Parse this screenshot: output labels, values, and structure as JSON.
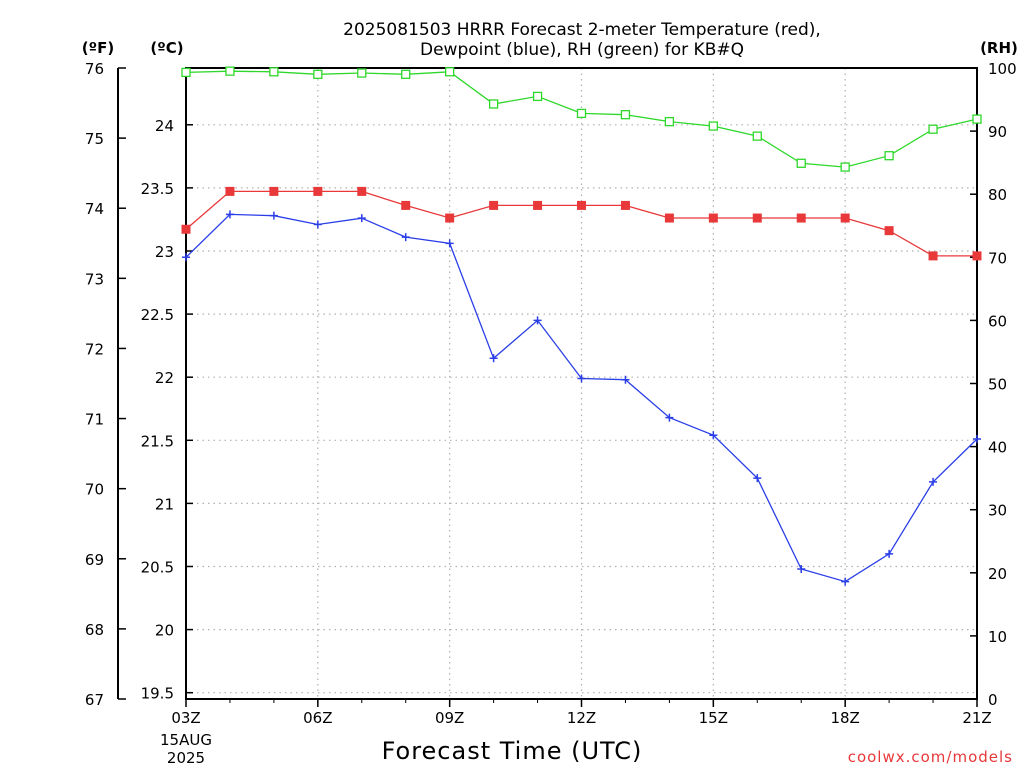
{
  "chart_data": {
    "type": "line",
    "title": "2025081503 HRRR Forecast 2-meter Temperature (red),",
    "subtitle": "Dewpoint (blue), RH (green) for KB#Q",
    "xlabel": "Forecast Time (UTC)",
    "x_ticks": [
      {
        "hour": 3,
        "label": "03Z"
      },
      {
        "hour": 6,
        "label": "06Z"
      },
      {
        "hour": 9,
        "label": "09Z"
      },
      {
        "hour": 12,
        "label": "12Z"
      },
      {
        "hour": 15,
        "label": "15Z"
      },
      {
        "hour": 18,
        "label": "18Z"
      },
      {
        "hour": 21,
        "label": "21Z"
      }
    ],
    "x_date_label": [
      "15AUG",
      "2025"
    ],
    "xlim": [
      3,
      21
    ],
    "axes": {
      "fahrenheit": {
        "unit_label": "(ºF)",
        "range": [
          67,
          76
        ],
        "ticks": [
          67,
          68,
          69,
          70,
          71,
          72,
          73,
          74,
          75,
          76
        ]
      },
      "celsius": {
        "unit_label": "(ºC)",
        "range": [
          19.45,
          24.45
        ],
        "ticks": [
          "19.5",
          "20",
          "20.5",
          "21",
          "21.5",
          "22",
          "22.5",
          "23",
          "23.5",
          "24"
        ]
      },
      "rh": {
        "unit_label": "(RH)",
        "range": [
          0,
          100
        ],
        "ticks": [
          0,
          10,
          20,
          30,
          40,
          50,
          60,
          70,
          80,
          90,
          100
        ]
      }
    },
    "grid": true,
    "hours": [
      3,
      4,
      5,
      6,
      7,
      8,
      9,
      10,
      11,
      12,
      13,
      14,
      15,
      16,
      17,
      18,
      19,
      20,
      21
    ],
    "series": [
      {
        "key": "temperature",
        "axis": "fahrenheit",
        "color": "#e8383a",
        "marker": "filled-square",
        "values": [
          73.7,
          74.24,
          74.24,
          74.24,
          74.24,
          74.04,
          73.86,
          74.04,
          74.04,
          74.04,
          74.04,
          73.86,
          73.86,
          73.86,
          73.86,
          73.86,
          73.68,
          73.32,
          73.32
        ]
      },
      {
        "key": "dewpoint",
        "axis": "celsius",
        "color": "#2a3ee8",
        "marker": "plus",
        "values": [
          22.95,
          23.29,
          23.28,
          23.21,
          23.26,
          23.11,
          23.06,
          22.15,
          22.45,
          21.99,
          21.98,
          21.68,
          21.54,
          21.2,
          20.48,
          20.38,
          20.6,
          21.17,
          21.51
        ]
      },
      {
        "key": "rh",
        "axis": "rh",
        "color": "#2ed82a",
        "marker": "open-square",
        "values": [
          99.3,
          99.5,
          99.4,
          99.0,
          99.2,
          99.0,
          99.4,
          94.3,
          95.5,
          92.8,
          92.6,
          91.5,
          90.8,
          89.2,
          84.9,
          84.3,
          86.1,
          90.3,
          91.9
        ]
      }
    ]
  },
  "credit": "coolwx.com/models"
}
